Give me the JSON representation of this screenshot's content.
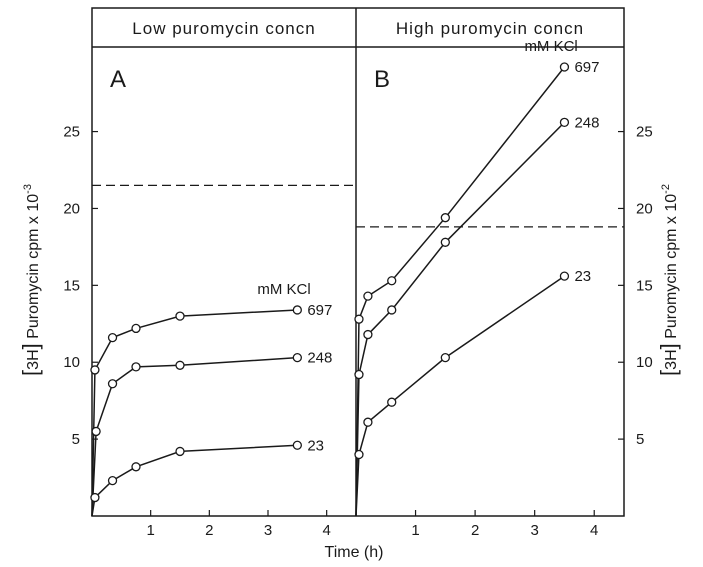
{
  "chart_data": [
    {
      "type": "line",
      "panel_letter": "A",
      "header": "Low puromycin concn",
      "legend_title": "mM KCl",
      "ylabel_prefix": "3H",
      "ylabel": "Puromycin cpm x 10",
      "ylabel_exp": "-3",
      "yticks": [
        "5",
        "10",
        "15",
        "20",
        "25"
      ],
      "ylim": [
        0,
        30.5
      ],
      "xticks": [
        "1",
        "2",
        "3",
        "4"
      ],
      "xlim": [
        0,
        4.5
      ],
      "dashed_line": 21.5,
      "series": [
        {
          "name": "697",
          "x": [
            0,
            0.05,
            0.35,
            0.75,
            1.5,
            3.5
          ],
          "y": [
            0,
            9.5,
            11.6,
            12.2,
            13.0,
            13.4
          ]
        },
        {
          "name": "248",
          "x": [
            0,
            0.07,
            0.35,
            0.75,
            1.5,
            3.5
          ],
          "y": [
            0,
            5.5,
            8.6,
            9.7,
            9.8,
            10.3
          ]
        },
        {
          "name": "23",
          "x": [
            0,
            0.05,
            0.35,
            0.75,
            1.5,
            3.5
          ],
          "y": [
            0,
            1.2,
            2.3,
            3.2,
            4.2,
            4.6
          ]
        }
      ]
    },
    {
      "type": "line",
      "panel_letter": "B",
      "header": "High puromycin concn",
      "legend_title": "mM KCl",
      "ylabel_prefix": "3H",
      "ylabel": "Puromycin cpm x 10",
      "ylabel_exp": "-2",
      "yticks": [
        "5",
        "10",
        "15",
        "20",
        "25"
      ],
      "ylim": [
        0,
        30.5
      ],
      "xticks": [
        "1",
        "2",
        "3",
        "4"
      ],
      "xlim": [
        0,
        4.5
      ],
      "dashed_line": 18.8,
      "series": [
        {
          "name": "697",
          "x": [
            0,
            0.05,
            0.2,
            0.6,
            1.5,
            3.5
          ],
          "y": [
            0,
            12.8,
            14.3,
            15.3,
            19.4,
            29.2
          ]
        },
        {
          "name": "248",
          "x": [
            0,
            0.05,
            0.2,
            0.6,
            1.5,
            3.5
          ],
          "y": [
            0,
            9.2,
            11.8,
            13.4,
            17.8,
            25.6
          ]
        },
        {
          "name": "23",
          "x": [
            0,
            0.05,
            0.2,
            0.6,
            1.5,
            3.5
          ],
          "y": [
            0,
            4.0,
            6.1,
            7.4,
            10.3,
            15.6
          ]
        }
      ]
    }
  ],
  "xlabel": "Time (h)"
}
